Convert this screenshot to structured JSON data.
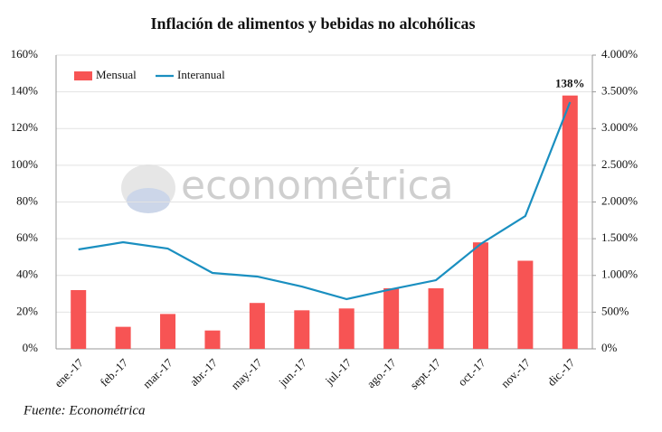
{
  "chart_data": {
    "type": "bar",
    "title": "Inflación de alimentos y bebidas no alcohólicas",
    "watermark": "econométrica",
    "source": "Fuente: Econométrica",
    "categories": [
      "ene.-17",
      "feb.-17",
      "mar.-17",
      "abr.-17",
      "may.-17",
      "jun.-17",
      "jul.-17",
      "ago.-17",
      "sept.-17",
      "oct.-17",
      "nov.-17",
      "dic.-17"
    ],
    "series": [
      {
        "name": "Mensual",
        "type": "bar",
        "color": "#f75454",
        "axis": "y",
        "values": [
          32,
          12,
          19,
          10,
          25,
          21,
          22,
          33,
          33,
          58,
          48,
          138
        ],
        "value_labels": [
          null,
          null,
          null,
          null,
          null,
          null,
          null,
          null,
          null,
          null,
          null,
          "138%"
        ]
      },
      {
        "name": "Interanual",
        "type": "line",
        "color": "#1a8fc0",
        "axis": "y2",
        "values": [
          1354,
          1452,
          1366,
          1034,
          985,
          849,
          677,
          812,
          935,
          1428,
          1809,
          3360
        ]
      }
    ],
    "ylim": [
      0,
      160
    ],
    "yticks": [
      {
        "value": 0,
        "label": "0%"
      },
      {
        "value": 20,
        "label": "20%"
      },
      {
        "value": 40,
        "label": "40%"
      },
      {
        "value": 60,
        "label": "60%"
      },
      {
        "value": 80,
        "label": "80%"
      },
      {
        "value": 100,
        "label": "100%"
      },
      {
        "value": 120,
        "label": "120%"
      },
      {
        "value": 140,
        "label": "140%"
      },
      {
        "value": 160,
        "label": "160%"
      }
    ],
    "y2lim": [
      0,
      4000
    ],
    "y2ticks": [
      {
        "value": 0,
        "label": "0%"
      },
      {
        "value": 500,
        "label": "500%"
      },
      {
        "value": 1000,
        "label": "1.000%"
      },
      {
        "value": 1500,
        "label": "1.500%"
      },
      {
        "value": 2000,
        "label": "2.000%"
      },
      {
        "value": 2500,
        "label": "2.500%"
      },
      {
        "value": 3000,
        "label": "3.000%"
      },
      {
        "value": 3500,
        "label": "3.500%"
      },
      {
        "value": 4000,
        "label": "4.000%"
      }
    ],
    "grid": true,
    "legend": "upper left"
  }
}
